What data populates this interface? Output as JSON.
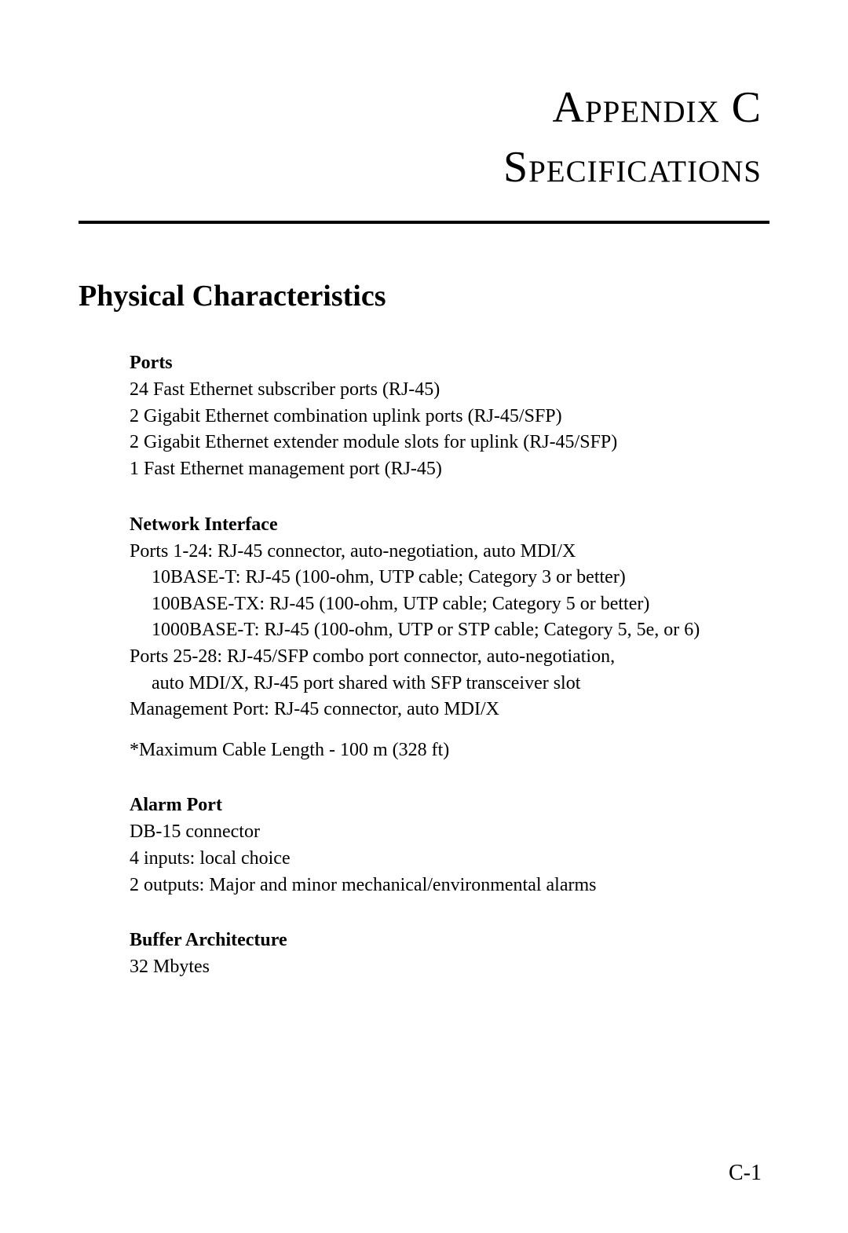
{
  "header": {
    "line1": "Appendix C",
    "line2": "Specifications"
  },
  "section": {
    "title": "Physical Characteristics"
  },
  "ports": {
    "heading": "Ports",
    "line1": "24 Fast Ethernet subscriber ports (RJ-45)",
    "line2": "2 Gigabit Ethernet combination uplink ports (RJ-45/SFP)",
    "line3": "2 Gigabit Ethernet extender module slots for uplink (RJ-45/SFP)",
    "line4": "1 Fast Ethernet management port (RJ-45)"
  },
  "network_interface": {
    "heading": "Network Interface",
    "line1": "Ports 1-24: RJ-45 connector, auto-negotiation, auto MDI/X",
    "indent1": "10BASE-T: RJ-45 (100-ohm, UTP cable; Category 3 or better)",
    "indent2": "100BASE-TX: RJ-45 (100-ohm, UTP cable; Category 5 or better)",
    "indent3": "1000BASE-T: RJ-45 (100-ohm, UTP or STP cable; Category 5, 5e, or 6)",
    "line2": "Ports 25-28: RJ-45/SFP combo port connector, auto-negotiation,",
    "indent4": "auto MDI/X, RJ-45 port shared with SFP transceiver slot",
    "line3": "Management Port: RJ-45 connector, auto MDI/X",
    "note": "*Maximum Cable Length - 100 m (328 ft)"
  },
  "alarm_port": {
    "heading": "Alarm Port",
    "line1": "DB-15 connector",
    "line2": "4 inputs: local choice",
    "line3": "2 outputs: Major and minor mechanical/environmental alarms"
  },
  "buffer": {
    "heading": "Buffer Architecture",
    "line1": "32 Mbytes"
  },
  "page_number": "C-1",
  "styling": {
    "background_color": "#ffffff",
    "text_color": "#000000",
    "font_family": "Garamond, Times New Roman, serif",
    "header_fontsize": 56,
    "header_initial_fontsize": 68,
    "section_title_fontsize": 38,
    "subsection_heading_fontsize": 24,
    "body_fontsize": 24,
    "page_number_fontsize": 28,
    "hr_thickness": 4
  }
}
